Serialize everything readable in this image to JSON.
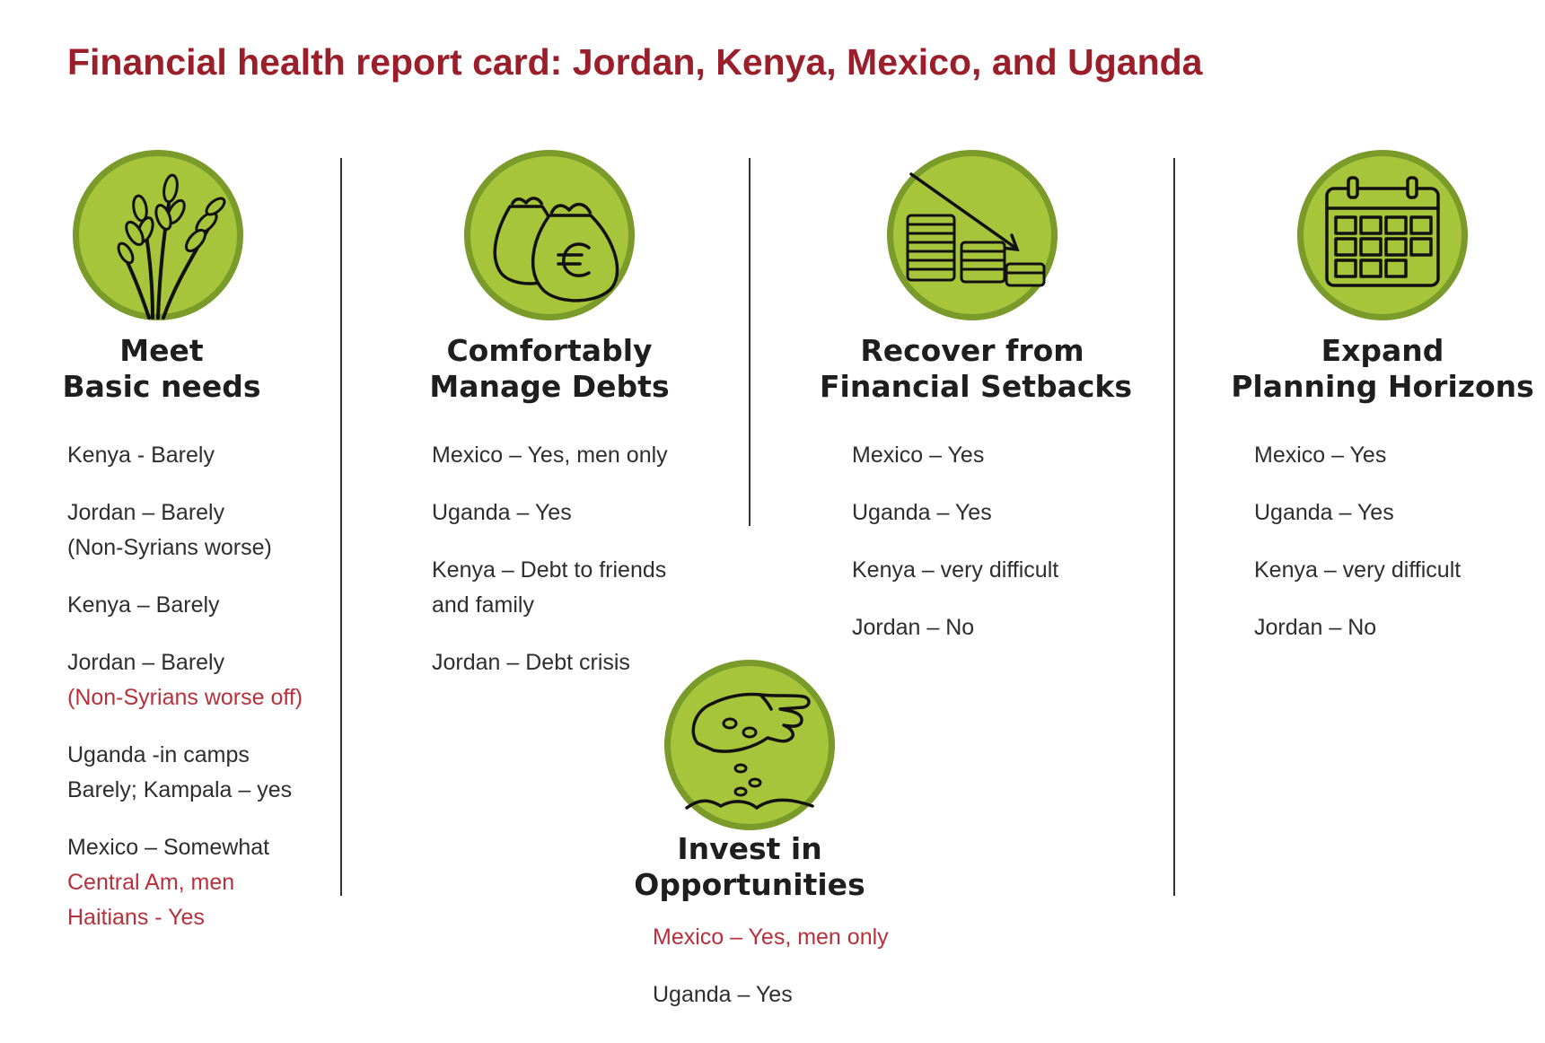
{
  "title": "Financial health report card: Jordan, Kenya, Mexico, and Uganda",
  "colors": {
    "title": "#9b1f2a",
    "highlight": "#b7303a",
    "badge": "#a6c53b",
    "badge_ring": "#7a9a2a"
  },
  "columns": [
    {
      "icon": "wheat-icon",
      "heading": [
        "Meet",
        "Basic needs"
      ],
      "items": [
        {
          "lines": [
            {
              "text": "Kenya - Barely"
            }
          ]
        },
        {
          "lines": [
            {
              "text": "Jordan – Barely"
            },
            {
              "text": "(Non-Syrians worse)"
            }
          ]
        },
        {
          "lines": [
            {
              "text": "Kenya – Barely"
            }
          ]
        },
        {
          "lines": [
            {
              "text": "Jordan – Barely"
            },
            {
              "text": "(Non-Syrians worse off)",
              "red": true
            }
          ]
        },
        {
          "lines": [
            {
              "text": "Uganda -in camps"
            },
            {
              "text": "Barely; Kampala – yes"
            }
          ]
        },
        {
          "lines": [
            {
              "text": "Mexico – Somewhat"
            },
            {
              "text": "Central Am, men",
              "red": true
            },
            {
              "text": "Haitians - Yes",
              "red": true
            }
          ]
        }
      ]
    },
    {
      "icon": "money-bags-icon",
      "heading": [
        "Comfortably",
        "Manage Debts"
      ],
      "items": [
        {
          "lines": [
            {
              "text": "Mexico – Yes, men only"
            }
          ]
        },
        {
          "lines": [
            {
              "text": "Uganda – Yes"
            }
          ]
        },
        {
          "lines": [
            {
              "text": "Kenya – Debt to friends"
            },
            {
              "text": "and family"
            }
          ]
        },
        {
          "lines": [
            {
              "text": "Jordan – Debt crisis"
            }
          ]
        }
      ]
    },
    {
      "icon": "coin-stacks-icon",
      "heading": [
        "Recover from",
        "Financial Setbacks"
      ],
      "items": [
        {
          "lines": [
            {
              "text": "Mexico – Yes"
            }
          ]
        },
        {
          "lines": [
            {
              "text": "Uganda – Yes"
            }
          ]
        },
        {
          "lines": [
            {
              "text": "Kenya – very difficult"
            }
          ]
        },
        {
          "lines": [
            {
              "text": "Jordan – No"
            }
          ]
        }
      ]
    },
    {
      "icon": "calendar-icon",
      "heading": [
        "Expand",
        "Planning Horizons"
      ],
      "items": [
        {
          "lines": [
            {
              "text": "Mexico – Yes"
            }
          ]
        },
        {
          "lines": [
            {
              "text": "Uganda – Yes"
            }
          ]
        },
        {
          "lines": [
            {
              "text": "Kenya – very difficult"
            }
          ]
        },
        {
          "lines": [
            {
              "text": "Jordan – No"
            }
          ]
        }
      ]
    },
    {
      "icon": "seeding-hand-icon",
      "heading": [
        "Invest in",
        "Opportunities"
      ],
      "items": [
        {
          "lines": [
            {
              "text": "Mexico – Yes, men only",
              "red": true
            }
          ]
        },
        {
          "lines": [
            {
              "text": "Uganda – Yes"
            }
          ]
        }
      ]
    }
  ]
}
